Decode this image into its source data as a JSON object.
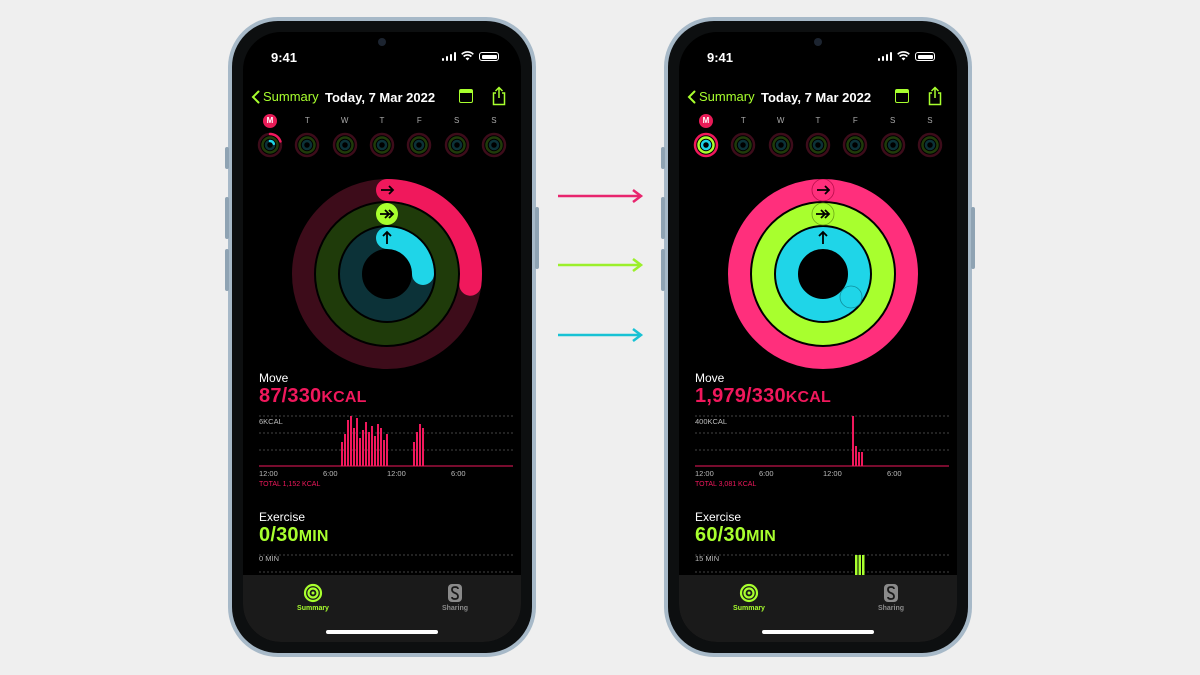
{
  "colors": {
    "move": "#f0185c",
    "exercise": "#a8ff2e",
    "stand": "#1fd5e8",
    "arrow_move": "#e8256e",
    "arrow_exercise": "#9bef2b",
    "arrow_stand": "#18c2d4"
  },
  "phones": [
    {
      "status": {
        "time": "9:41"
      },
      "nav": {
        "back_label": "Summary",
        "title": "Today, 7 Mar 2022"
      },
      "days": [
        "M",
        "T",
        "W",
        "T",
        "F",
        "S",
        "S"
      ],
      "move": {
        "label": "Move",
        "value": "87/330",
        "unit": "KCAL",
        "axis_top": "6KCAL",
        "x_ticks": [
          "12:00",
          "6:00",
          "12:00",
          "6:00"
        ],
        "total": "TOTAL 1,152 KCAL",
        "progress": 0.26
      },
      "exercise": {
        "label": "Exercise",
        "value": "0/30",
        "unit": "MIN",
        "axis_top": "0 MIN",
        "progress": 0.0
      },
      "stand_progress": 0.25,
      "tabs": {
        "summary": "Summary",
        "sharing": "Sharing"
      }
    },
    {
      "status": {
        "time": "9:41"
      },
      "nav": {
        "back_label": "Summary",
        "title": "Today, 7 Mar 2022"
      },
      "days": [
        "M",
        "T",
        "W",
        "T",
        "F",
        "S",
        "S"
      ],
      "move": {
        "label": "Move",
        "value": "1,979/330",
        "unit": "KCAL",
        "axis_top": "400KCAL",
        "x_ticks": [
          "12:00",
          "6:00",
          "12:00",
          "6:00"
        ],
        "total": "TOTAL 3,081 KCAL",
        "progress": 1.0
      },
      "exercise": {
        "label": "Exercise",
        "value": "60/30",
        "unit": "MIN",
        "axis_top": "15 MIN",
        "progress": 1.0
      },
      "stand_progress": 1.0,
      "tabs": {
        "summary": "Summary",
        "sharing": "Sharing"
      }
    }
  ]
}
